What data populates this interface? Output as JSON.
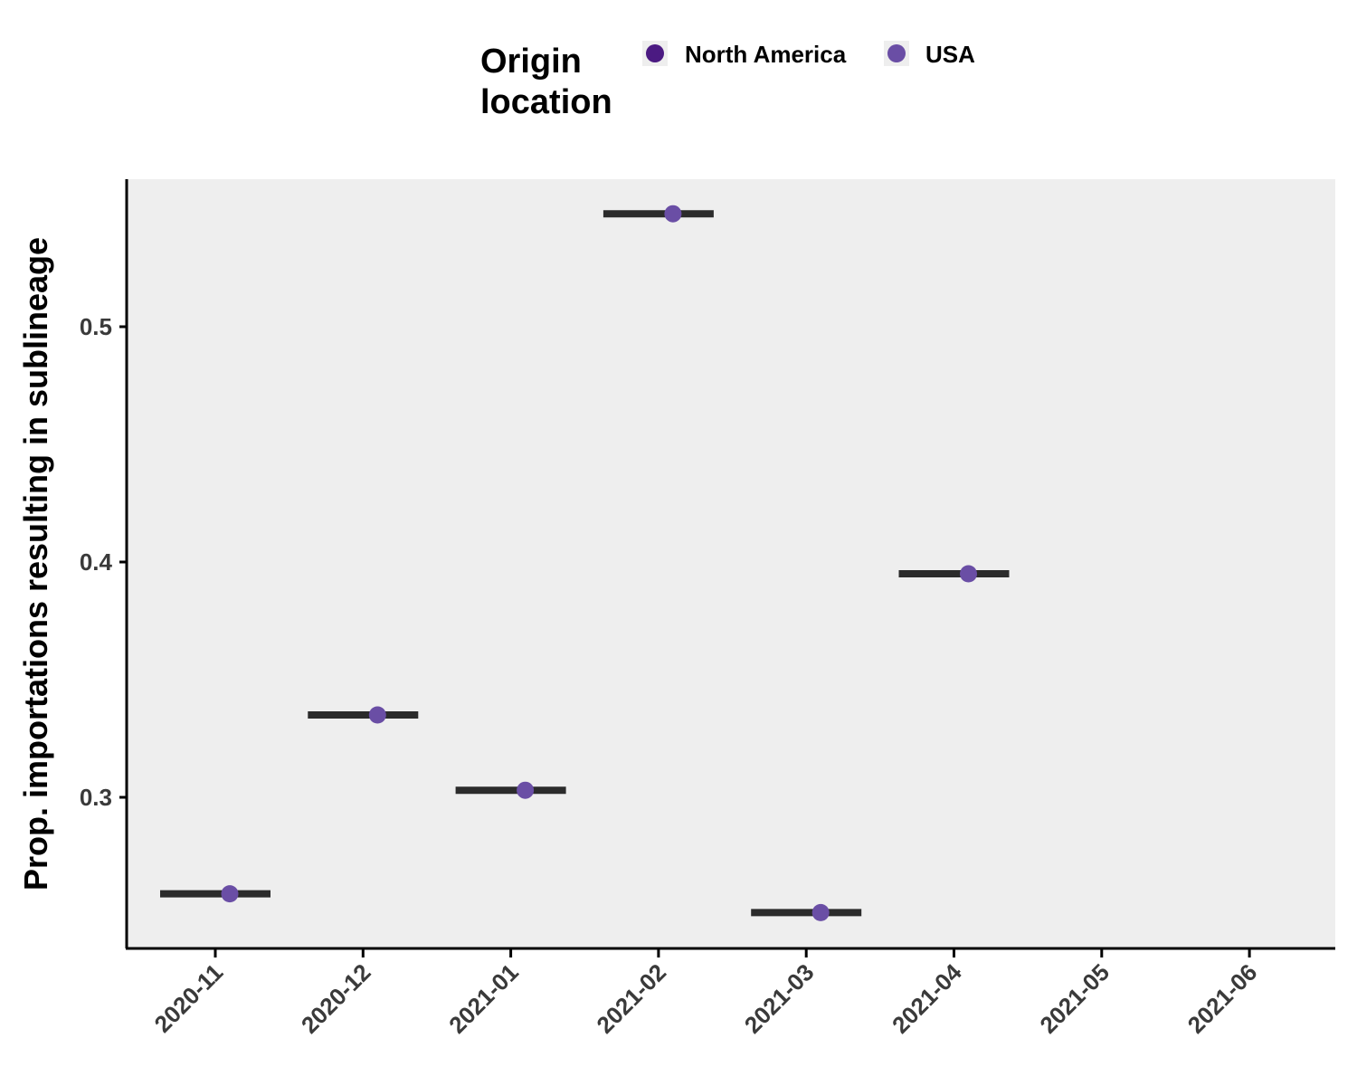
{
  "chart_data": {
    "type": "scatter",
    "xlabel": "",
    "ylabel": "Prop. importations resulting in sublineage",
    "x_categories": [
      "2020-11",
      "2020-12",
      "2021-01",
      "2021-02",
      "2021-03",
      "2021-04",
      "2021-05",
      "2021-06"
    ],
    "yticks": [
      "0.3",
      "0.4",
      "0.5"
    ],
    "ylim": [
      0.236,
      0.562
    ],
    "grid": false,
    "background": "#eeeeee",
    "legend": {
      "title_lines": [
        "Origin",
        "location"
      ],
      "position": "top",
      "entries": [
        {
          "name": "North America",
          "color": "#4b1a82"
        },
        {
          "name": "USA",
          "color": "#6a4ea5"
        }
      ]
    },
    "series": [
      {
        "name": "USA",
        "color": "#6a4ea5",
        "points": [
          {
            "x": "2020-11",
            "y": 0.259
          },
          {
            "x": "2020-12",
            "y": 0.335
          },
          {
            "x": "2021-01",
            "y": 0.303
          },
          {
            "x": "2021-02",
            "y": 0.548
          },
          {
            "x": "2021-03",
            "y": 0.251
          },
          {
            "x": "2021-04",
            "y": 0.395
          }
        ]
      }
    ],
    "segments": {
      "color": "#2b2b2b",
      "points": [
        {
          "x": "2020-11",
          "y": 0.259
        },
        {
          "x": "2020-12",
          "y": 0.335
        },
        {
          "x": "2021-01",
          "y": 0.303
        },
        {
          "x": "2021-02",
          "y": 0.548
        },
        {
          "x": "2021-03",
          "y": 0.251
        },
        {
          "x": "2021-04",
          "y": 0.395
        }
      ]
    }
  }
}
